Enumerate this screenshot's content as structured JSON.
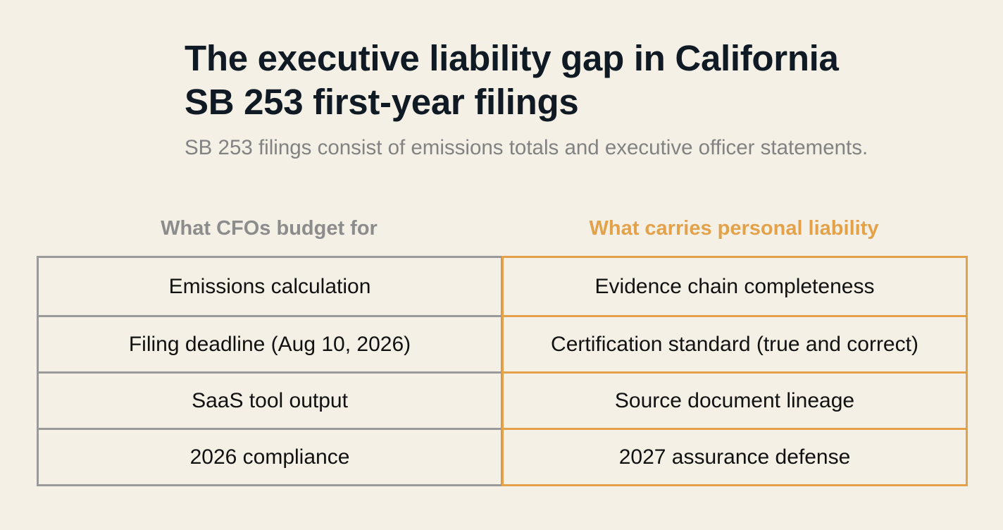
{
  "title_line1": "The executive liability gap in California",
  "title_line2": "SB 253 first-year filings",
  "subtitle": "SB 253 filings consist of emissions totals and executive officer statements.",
  "colors": {
    "background": "#f4f0e6",
    "left_accent": "#9a9a9a",
    "right_accent": "#e3a24a",
    "title": "#0f1a24"
  },
  "comparison": {
    "left": {
      "header": "What CFOs budget for",
      "items": [
        "Emissions calculation",
        "Filing deadline (Aug 10, 2026)",
        "SaaS tool output",
        "2026 compliance"
      ]
    },
    "right": {
      "header": "What carries personal liability",
      "items": [
        "Evidence chain completeness",
        "Certification standard (true and correct)",
        "Source document lineage",
        "2027 assurance defense"
      ]
    }
  }
}
